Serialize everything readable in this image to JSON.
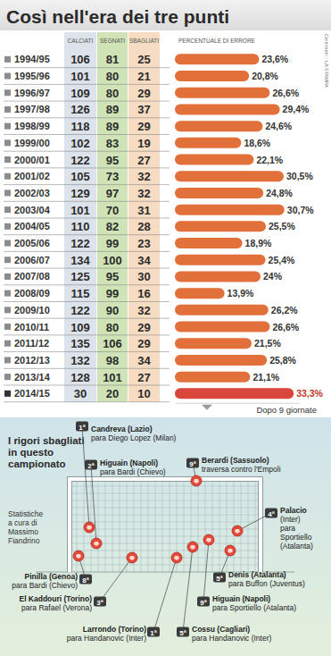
{
  "title": "Così nell'era dei tre punti",
  "credit": "Centimetri - LA STAMPA",
  "headers": [
    "CALCIATI",
    "SEGNATI",
    "SBAGLIATI",
    "PERCENTUALE DI ERRORE"
  ],
  "chart_data": {
    "type": "bar",
    "orientation": "horizontal",
    "data_labels": true,
    "tick_labels": false,
    "categories": [
      "1994/95",
      "1995/96",
      "1996/97",
      "1997/98",
      "1998/99",
      "1999/00",
      "2000/01",
      "2001/02",
      "2002/03",
      "2003/04",
      "2004/05",
      "2005/06",
      "2006/07",
      "2007/08",
      "2008/09",
      "2009/10",
      "2010/11",
      "2011/12",
      "2012/13",
      "2013/14",
      "2014/15"
    ],
    "values": [
      23.6,
      20.8,
      26.6,
      29.4,
      24.6,
      18.6,
      22.1,
      30.5,
      24.8,
      30.7,
      25.5,
      18.9,
      25.4,
      24,
      13.9,
      26.2,
      26.6,
      21.5,
      25.8,
      21.1,
      33.3
    ],
    "value_labels": [
      "23,6%",
      "20,8%",
      "26,6%",
      "29,4%",
      "24,6%",
      "18,6%",
      "22,1%",
      "30,5%",
      "24,8%",
      "30,7%",
      "25,5%",
      "18,9%",
      "25,4%",
      "24%",
      "13,9%",
      "26,2%",
      "26,6%",
      "21,5%",
      "25,8%",
      "21,1%",
      "33,3%"
    ],
    "calciati": [
      106,
      101,
      109,
      126,
      118,
      102,
      122,
      105,
      129,
      101,
      110,
      122,
      134,
      125,
      115,
      122,
      109,
      135,
      132,
      128,
      30
    ],
    "segnati": [
      81,
      80,
      80,
      89,
      89,
      83,
      95,
      73,
      97,
      70,
      82,
      99,
      100,
      95,
      99,
      90,
      80,
      106,
      98,
      101,
      20
    ],
    "sbagliati": [
      25,
      21,
      29,
      37,
      29,
      19,
      27,
      32,
      32,
      31,
      28,
      23,
      34,
      30,
      16,
      32,
      29,
      29,
      34,
      27,
      10
    ],
    "colors": [
      "#e2703a",
      "#e2703a",
      "#e2703a",
      "#e2703a",
      "#e2703a",
      "#e2703a",
      "#e2703a",
      "#e2703a",
      "#e2703a",
      "#e2703a",
      "#e2703a",
      "#e2703a",
      "#e2703a",
      "#e2703a",
      "#e2703a",
      "#e2703a",
      "#e2703a",
      "#e2703a",
      "#e2703a",
      "#e2703a",
      "#d9463c"
    ],
    "xlim": [
      0,
      35
    ]
  },
  "note": "Dopo 9 giornate",
  "section_title": [
    "I rigori sbagliati",
    "in questo",
    "campionato"
  ],
  "source_note": [
    "Statistiche",
    "a cura di",
    "Massimo",
    "Fiandrino"
  ],
  "misses": [
    {
      "giornata": "1ª",
      "lines": [
        "Candreva (Lazio)",
        "para Diego Lopez (Milan)"
      ]
    },
    {
      "giornata": "2ª",
      "lines": [
        "Higuain (Napoli)",
        "para Bardi (Chievo)"
      ]
    },
    {
      "giornata": "9ª",
      "lines": [
        "Berardi (Sassuolo)",
        "traversa contro l'Empoli"
      ]
    },
    {
      "giornata": "4ª",
      "lines": [
        "Palacio",
        "(Inter)",
        "para",
        "Sportiello",
        "(Atalanta)"
      ]
    },
    {
      "giornata": "5ª",
      "lines": [
        "Denis (Atalanta)",
        "para Buffon (Juventus)"
      ]
    },
    {
      "giornata": "9ª",
      "lines": [
        "Higuain (Napoli)",
        "para Sportiello (Atalanta)"
      ]
    },
    {
      "giornata": "5ª",
      "lines": [
        "Cossu (Cagliari)",
        "para Handanovic (Inter)"
      ]
    },
    {
      "giornata": "1ª",
      "lines": [
        "Larrondo (Torino)",
        "para Handanovic (Inter)"
      ]
    },
    {
      "giornata": "3ª",
      "lines": [
        "El Kaddouri (Torino)",
        "para Rafael (Verona)"
      ]
    },
    {
      "giornata": "8ª",
      "lines": [
        "Pinilla (Genoa)",
        "para Bardi (Chievo)"
      ]
    }
  ]
}
